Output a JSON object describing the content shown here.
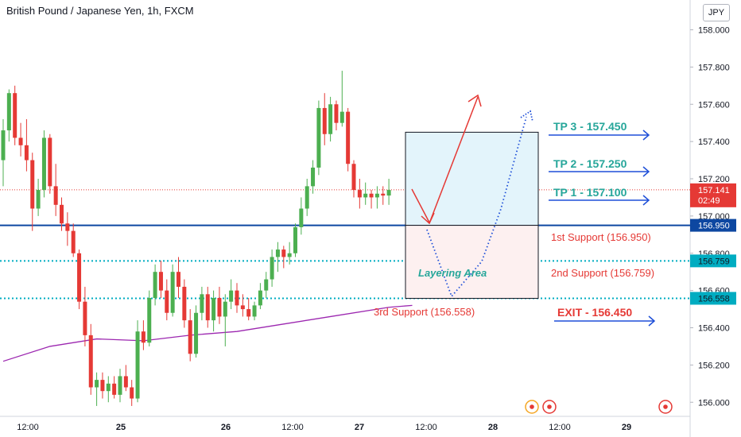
{
  "header": {
    "symbol_title": "British Pound / Japanese Yen, 1h, FXCM",
    "currency_button": "JPY"
  },
  "colors": {
    "up": "#4caf50",
    "down": "#e53935",
    "ma": "#9c27b0",
    "support_main": "#0d47a1",
    "support_dotted": "#00acc1",
    "price_line": "#e53935",
    "tp_text": "#26a69a",
    "support_text": "#e53935",
    "arrow_blue": "#1e4fd8"
  },
  "chart_data": {
    "type": "candlestick",
    "title": "British Pound / Japanese Yen, 1h, FXCM",
    "ylim": [
      155.92,
      158.16
    ],
    "y_ticks": [
      "158.000",
      "157.800",
      "157.600",
      "157.400",
      "157.200",
      "157.000",
      "156.800",
      "156.600",
      "156.400",
      "156.200",
      "156.000"
    ],
    "x_ticks": [
      "12:00",
      "25",
      "26",
      "12:00",
      "27",
      "12:00",
      "28",
      "12:00",
      "29"
    ],
    "candles": [
      [
        157.3,
        157.52,
        157.16,
        157.46
      ],
      [
        157.46,
        157.68,
        157.4,
        157.66
      ],
      [
        157.66,
        157.7,
        157.38,
        157.42
      ],
      [
        157.42,
        157.5,
        157.32,
        157.38
      ],
      [
        157.38,
        157.52,
        157.24,
        157.3
      ],
      [
        157.3,
        157.34,
        156.92,
        157.04
      ],
      [
        157.04,
        157.2,
        157.0,
        157.14
      ],
      [
        157.14,
        157.46,
        157.1,
        157.42
      ],
      [
        157.42,
        157.44,
        157.12,
        157.16
      ],
      [
        157.16,
        157.28,
        157.0,
        157.06
      ],
      [
        157.06,
        157.1,
        156.92,
        156.96
      ],
      [
        156.96,
        157.02,
        156.84,
        156.92
      ],
      [
        156.92,
        156.96,
        156.78,
        156.8
      ],
      [
        156.8,
        156.82,
        156.5,
        156.54
      ],
      [
        156.54,
        156.62,
        156.3,
        156.36
      ],
      [
        156.36,
        156.42,
        156.04,
        156.08
      ],
      [
        156.08,
        156.16,
        155.98,
        156.12
      ],
      [
        156.12,
        156.16,
        156.02,
        156.06
      ],
      [
        156.06,
        156.14,
        156.0,
        156.1
      ],
      [
        156.1,
        156.14,
        156.02,
        156.04
      ],
      [
        156.04,
        156.18,
        156.0,
        156.14
      ],
      [
        156.14,
        156.2,
        156.06,
        156.08
      ],
      [
        156.08,
        156.12,
        155.98,
        156.02
      ],
      [
        156.02,
        156.44,
        156.0,
        156.38
      ],
      [
        156.38,
        156.44,
        156.28,
        156.32
      ],
      [
        156.32,
        156.6,
        156.3,
        156.56
      ],
      [
        156.56,
        156.74,
        156.52,
        156.7
      ],
      [
        156.7,
        156.76,
        156.56,
        156.6
      ],
      [
        156.6,
        156.66,
        156.44,
        156.48
      ],
      [
        156.48,
        156.74,
        156.46,
        156.7
      ],
      [
        156.7,
        156.78,
        156.56,
        156.62
      ],
      [
        156.62,
        156.66,
        156.4,
        156.44
      ],
      [
        156.44,
        156.5,
        156.22,
        156.26
      ],
      [
        156.26,
        156.52,
        156.24,
        156.48
      ],
      [
        156.48,
        156.62,
        156.44,
        156.58
      ],
      [
        156.58,
        156.62,
        156.4,
        156.44
      ],
      [
        156.44,
        156.6,
        156.38,
        156.56
      ],
      [
        156.56,
        156.62,
        156.42,
        156.46
      ],
      [
        156.46,
        156.58,
        156.3,
        156.54
      ],
      [
        156.54,
        156.66,
        156.5,
        156.6
      ],
      [
        156.6,
        156.64,
        156.48,
        156.52
      ],
      [
        156.52,
        156.58,
        156.46,
        156.5
      ],
      [
        156.5,
        156.56,
        156.44,
        156.46
      ],
      [
        156.46,
        156.54,
        156.44,
        156.52
      ],
      [
        156.52,
        156.64,
        156.5,
        156.6
      ],
      [
        156.6,
        156.7,
        156.56,
        156.66
      ],
      [
        156.66,
        156.82,
        156.62,
        156.78
      ],
      [
        156.78,
        156.86,
        156.7,
        156.82
      ],
      [
        156.82,
        156.84,
        156.72,
        156.78
      ],
      [
        156.78,
        156.86,
        156.74,
        156.8
      ],
      [
        156.8,
        156.96,
        156.78,
        156.94
      ],
      [
        156.94,
        157.1,
        156.9,
        157.04
      ],
      [
        157.04,
        157.2,
        157.0,
        157.16
      ],
      [
        157.16,
        157.3,
        157.12,
        157.26
      ],
      [
        157.26,
        157.62,
        157.22,
        157.58
      ],
      [
        157.58,
        157.66,
        157.38,
        157.44
      ],
      [
        157.44,
        157.64,
        157.4,
        157.6
      ],
      [
        157.6,
        157.62,
        157.46,
        157.5
      ],
      [
        157.5,
        157.78,
        157.48,
        157.56
      ],
      [
        157.56,
        157.58,
        157.24,
        157.28
      ],
      [
        157.28,
        157.3,
        157.1,
        157.14
      ],
      [
        157.14,
        157.2,
        157.04,
        157.1
      ],
      [
        157.1,
        157.18,
        157.06,
        157.12
      ],
      [
        157.12,
        157.14,
        157.04,
        157.1
      ],
      [
        157.1,
        157.16,
        157.04,
        157.12
      ],
      [
        157.12,
        157.16,
        157.06,
        157.11
      ],
      [
        157.11,
        157.2,
        157.06,
        157.14
      ]
    ],
    "moving_average": [
      [
        0,
        156.22
      ],
      [
        8,
        156.3
      ],
      [
        16,
        156.34
      ],
      [
        24,
        156.33
      ],
      [
        32,
        156.36
      ],
      [
        40,
        156.38
      ],
      [
        48,
        156.42
      ],
      [
        56,
        156.46
      ],
      [
        66,
        156.51
      ],
      [
        70,
        156.52
      ]
    ],
    "current_price": {
      "value": "157.141",
      "countdown": "02:49"
    },
    "levels": [
      {
        "value": 156.95,
        "label": "156.950",
        "style": "solid"
      },
      {
        "value": 156.759,
        "label": "156.759",
        "style": "dotted"
      },
      {
        "value": 156.558,
        "label": "156.558",
        "style": "dotted"
      }
    ],
    "annotations": {
      "tp3": "TP 3 - 157.450",
      "tp2": "TP 2 - 157.250",
      "tp1": "TP 1 - 157.100",
      "support1": "1st Support (156.950)",
      "support2": "2nd Support (156.759)",
      "support3": "3rd Support (156.558)",
      "exit": "EXIT - 156.450",
      "layering": "Layering Area"
    },
    "box": {
      "from": 157.45,
      "to": 156.558
    }
  }
}
